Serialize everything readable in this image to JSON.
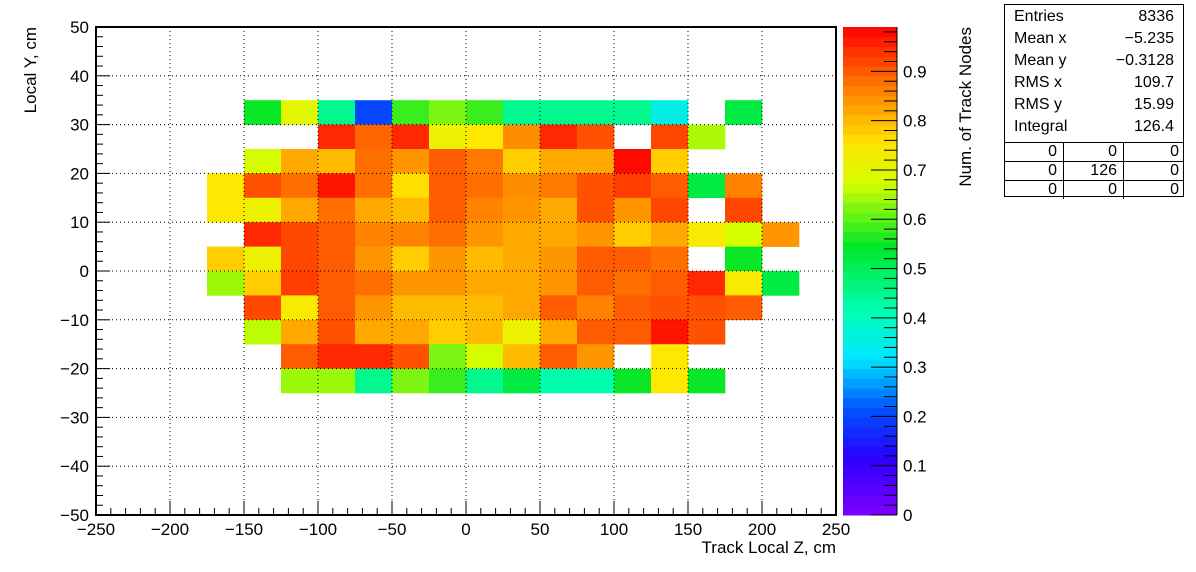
{
  "chart_data": {
    "type": "heatmap",
    "xlabel": "Track Local Z, cm",
    "ylabel": "Local Y, cm",
    "zlabel": "Num. of Track Nodes",
    "xlim": [
      -250,
      250
    ],
    "ylim": [
      -50,
      50
    ],
    "zlim": [
      0,
      0.99
    ],
    "x_ticks": [
      -250,
      -200,
      -150,
      -100,
      -50,
      0,
      50,
      100,
      150,
      200,
      250
    ],
    "y_ticks": [
      -50,
      -40,
      -30,
      -20,
      -10,
      0,
      10,
      20,
      30,
      40,
      50
    ],
    "z_ticks": [
      0,
      0.1,
      0.2,
      0.3,
      0.4,
      0.5,
      0.6,
      0.7,
      0.8,
      0.9
    ],
    "grid": true,
    "colorbar": "right",
    "x_bin_edges": [
      -250,
      -225,
      -200,
      -175,
      -150,
      -125,
      -100,
      -75,
      -50,
      -25,
      0,
      25,
      50,
      75,
      100,
      125,
      150,
      175,
      200,
      225,
      250
    ],
    "y_bin_edges": [
      -50,
      -45,
      -40,
      -35,
      -30,
      -25,
      -20,
      -15,
      -10,
      -5,
      0,
      5,
      10,
      15,
      20,
      25,
      30,
      35,
      40,
      45,
      50
    ],
    "z_values_top_to_bottom": [
      [
        null,
        null,
        null,
        null,
        null,
        null,
        null,
        null,
        null,
        null,
        null,
        null,
        null,
        null,
        null,
        null,
        null,
        null,
        null,
        null
      ],
      [
        null,
        null,
        null,
        null,
        null,
        null,
        null,
        null,
        null,
        null,
        null,
        null,
        null,
        null,
        null,
        null,
        null,
        null,
        null,
        null
      ],
      [
        null,
        null,
        null,
        null,
        null,
        null,
        null,
        null,
        null,
        null,
        null,
        null,
        null,
        null,
        null,
        null,
        null,
        null,
        null,
        null
      ],
      [
        null,
        null,
        null,
        null,
        0.55,
        0.7,
        0.45,
        0.2,
        0.58,
        0.62,
        0.58,
        0.45,
        0.45,
        0.45,
        0.45,
        0.35,
        null,
        0.52,
        null,
        null
      ],
      [
        null,
        null,
        null,
        null,
        null,
        null,
        0.95,
        0.89,
        0.95,
        0.72,
        0.75,
        0.85,
        0.95,
        0.91,
        null,
        0.92,
        0.65,
        null,
        null,
        null
      ],
      [
        null,
        null,
        null,
        null,
        0.68,
        0.82,
        0.8,
        0.88,
        0.84,
        0.9,
        0.87,
        0.78,
        0.82,
        0.82,
        0.98,
        0.78,
        null,
        null,
        null,
        null
      ],
      [
        null,
        null,
        null,
        0.75,
        0.91,
        0.88,
        0.97,
        0.88,
        0.76,
        0.9,
        0.88,
        0.85,
        0.87,
        0.91,
        0.93,
        0.9,
        0.52,
        0.86,
        null,
        null
      ],
      [
        null,
        null,
        null,
        0.75,
        0.72,
        0.82,
        0.88,
        0.82,
        0.8,
        0.9,
        0.86,
        0.84,
        0.82,
        0.91,
        0.84,
        0.92,
        null,
        0.92,
        null,
        null
      ],
      [
        null,
        null,
        null,
        null,
        0.95,
        0.92,
        0.9,
        0.86,
        0.86,
        0.88,
        0.84,
        0.82,
        0.82,
        0.84,
        0.78,
        0.82,
        0.74,
        0.68,
        0.84,
        null
      ],
      [
        null,
        null,
        null,
        0.78,
        0.72,
        0.92,
        0.9,
        0.84,
        0.78,
        0.84,
        0.8,
        0.82,
        0.84,
        0.9,
        0.9,
        0.88,
        null,
        0.55,
        null,
        null
      ],
      [
        null,
        null,
        null,
        0.64,
        0.78,
        0.93,
        0.9,
        0.88,
        0.84,
        0.84,
        0.82,
        0.82,
        0.84,
        0.9,
        0.88,
        0.9,
        0.95,
        0.74,
        0.52,
        null
      ],
      [
        null,
        null,
        null,
        null,
        0.92,
        0.74,
        0.9,
        0.84,
        0.8,
        0.8,
        0.8,
        0.82,
        0.9,
        0.86,
        0.9,
        0.91,
        0.91,
        0.9,
        null,
        null
      ],
      [
        null,
        null,
        null,
        null,
        0.66,
        0.82,
        0.91,
        0.82,
        0.82,
        0.78,
        0.8,
        0.72,
        0.82,
        0.9,
        0.9,
        0.97,
        0.91,
        null,
        null,
        null
      ],
      [
        null,
        null,
        null,
        null,
        null,
        0.9,
        0.95,
        0.95,
        0.91,
        0.62,
        0.68,
        0.8,
        0.9,
        0.84,
        null,
        0.75,
        null,
        null,
        null,
        null
      ],
      [
        null,
        null,
        null,
        null,
        null,
        0.64,
        0.64,
        0.45,
        0.62,
        0.58,
        0.45,
        0.52,
        0.42,
        0.42,
        0.55,
        0.75,
        0.55,
        null,
        null,
        null
      ],
      [
        null,
        null,
        null,
        null,
        null,
        null,
        null,
        null,
        null,
        null,
        null,
        null,
        null,
        null,
        null,
        null,
        null,
        null,
        null,
        null
      ],
      [
        null,
        null,
        null,
        null,
        null,
        null,
        null,
        null,
        null,
        null,
        null,
        null,
        null,
        null,
        null,
        null,
        null,
        null,
        null,
        null
      ],
      [
        null,
        null,
        null,
        null,
        null,
        null,
        null,
        null,
        null,
        null,
        null,
        null,
        null,
        null,
        null,
        null,
        null,
        null,
        null,
        null
      ],
      [
        null,
        null,
        null,
        null,
        null,
        null,
        null,
        null,
        null,
        null,
        null,
        null,
        null,
        null,
        null,
        null,
        null,
        null,
        null,
        null
      ],
      [
        null,
        null,
        null,
        null,
        null,
        null,
        null,
        null,
        null,
        null,
        null,
        null,
        null,
        null,
        null,
        null,
        null,
        null,
        null,
        null
      ]
    ]
  },
  "stats": {
    "rows": [
      {
        "label": "Entries",
        "value": "8336"
      },
      {
        "label": "Mean x",
        "value": "−5.235"
      },
      {
        "label": "Mean y",
        "value": "−0.3128"
      },
      {
        "label": "RMS x",
        "value": "109.7"
      },
      {
        "label": "RMS y",
        "value": "15.99"
      },
      {
        "label": "Integral",
        "value": "126.4"
      }
    ],
    "grid": [
      [
        "0",
        "0",
        "0"
      ],
      [
        "0",
        "126",
        "0"
      ],
      [
        "0",
        "0",
        "0"
      ]
    ]
  }
}
